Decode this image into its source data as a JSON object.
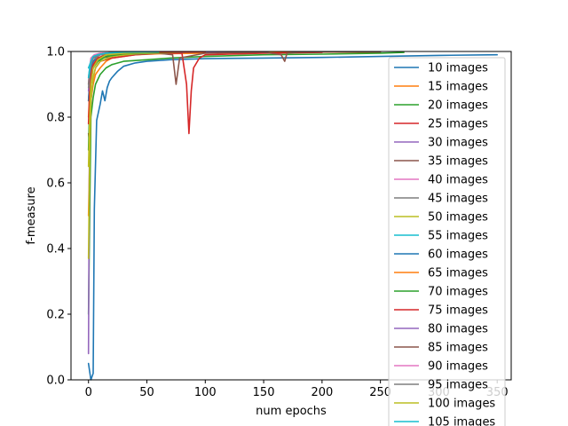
{
  "chart_data": {
    "type": "line",
    "title": "",
    "xlabel": "num epochs",
    "ylabel": "f-measure",
    "xlim": [
      -15,
      362
    ],
    "ylim": [
      0.0,
      1.0
    ],
    "xticks": [
      0,
      50,
      100,
      150,
      200,
      250,
      300,
      350
    ],
    "yticks": [
      0.0,
      0.2,
      0.4,
      0.6,
      0.8,
      1.0
    ],
    "ytick_labels": [
      "0.0",
      "0.2",
      "0.4",
      "0.6",
      "0.8",
      "1.0"
    ],
    "grid": false,
    "legend": "upper-right",
    "series": [
      {
        "name": "10 images",
        "color": "#1f77b4",
        "x": [
          0,
          2,
          4,
          5,
          7,
          10,
          12,
          14,
          16,
          18,
          20,
          25,
          30,
          40,
          50,
          70,
          100,
          150,
          200,
          250,
          300,
          350
        ],
        "y": [
          0.05,
          0.0,
          0.02,
          0.52,
          0.79,
          0.84,
          0.88,
          0.85,
          0.89,
          0.91,
          0.92,
          0.94,
          0.955,
          0.965,
          0.97,
          0.975,
          0.978,
          0.98,
          0.982,
          0.985,
          0.988,
          0.99
        ]
      },
      {
        "name": "15 images",
        "color": "#ff7f0e",
        "x": [
          0,
          2,
          4,
          6,
          10,
          15,
          20,
          30,
          40,
          60,
          100,
          150,
          200,
          250
        ],
        "y": [
          0.5,
          0.85,
          0.9,
          0.93,
          0.95,
          0.97,
          0.98,
          0.985,
          0.99,
          0.993,
          0.995,
          0.997,
          0.998,
          0.998
        ]
      },
      {
        "name": "20 images",
        "color": "#2ca02c",
        "x": [
          0,
          2,
          4,
          6,
          10,
          15,
          20,
          30,
          50,
          70,
          100,
          150,
          200,
          250,
          270
        ],
        "y": [
          0.2,
          0.8,
          0.86,
          0.9,
          0.93,
          0.95,
          0.96,
          0.97,
          0.975,
          0.98,
          0.985,
          0.99,
          0.992,
          0.995,
          0.997
        ]
      },
      {
        "name": "25 images",
        "color": "#d62728",
        "x": [
          0,
          1,
          2,
          4,
          6,
          10,
          20,
          40,
          60,
          80,
          84,
          86,
          88,
          90,
          95,
          100,
          150,
          200
        ],
        "y": [
          0.75,
          0.72,
          0.85,
          0.92,
          0.95,
          0.97,
          0.98,
          0.99,
          0.995,
          0.995,
          0.9,
          0.75,
          0.88,
          0.95,
          0.98,
          0.99,
          0.995,
          0.997
        ]
      },
      {
        "name": "30 images",
        "color": "#9467bd",
        "x": [
          0,
          1,
          2,
          4,
          6,
          10,
          20,
          50,
          100,
          150
        ],
        "y": [
          0.08,
          0.9,
          0.95,
          0.97,
          0.98,
          0.99,
          0.993,
          0.996,
          0.998,
          0.999
        ]
      },
      {
        "name": "35 images",
        "color": "#8c564b",
        "x": [
          0,
          2,
          5,
          10,
          30,
          60,
          72,
          75,
          78,
          100,
          150,
          165,
          168,
          170,
          180,
          200,
          250
        ],
        "y": [
          0.85,
          0.93,
          0.96,
          0.98,
          0.99,
          0.995,
          0.99,
          0.9,
          0.98,
          0.995,
          0.998,
          0.99,
          0.97,
          0.995,
          0.998,
          0.999,
          0.999
        ]
      },
      {
        "name": "40 images",
        "color": "#e377c2",
        "x": [
          0,
          1,
          2,
          5,
          10,
          30,
          60,
          100
        ],
        "y": [
          0.9,
          0.95,
          0.98,
          0.99,
          0.995,
          0.998,
          0.999,
          0.999
        ]
      },
      {
        "name": "45 images",
        "color": "#7f7f7f",
        "x": [
          0,
          1,
          3,
          6,
          10,
          30,
          60,
          100
        ],
        "y": [
          0.85,
          0.92,
          0.96,
          0.98,
          0.99,
          0.995,
          0.998,
          0.999
        ]
      },
      {
        "name": "50 images",
        "color": "#bcbd22",
        "x": [
          0,
          1,
          2,
          4,
          6,
          10,
          20,
          40,
          80
        ],
        "y": [
          0.37,
          0.7,
          0.85,
          0.92,
          0.95,
          0.97,
          0.985,
          0.993,
          0.998
        ]
      },
      {
        "name": "55 images",
        "color": "#17becf",
        "x": [
          0,
          1,
          2,
          4,
          8,
          15,
          30,
          60,
          100
        ],
        "y": [
          0.95,
          0.96,
          0.97,
          0.98,
          0.99,
          0.995,
          0.998,
          0.999,
          0.999
        ]
      },
      {
        "name": "60 images",
        "color": "#1f77b4",
        "x": [
          0,
          1,
          2,
          4,
          8,
          15,
          30,
          60,
          100
        ],
        "y": [
          0.85,
          0.9,
          0.94,
          0.97,
          0.98,
          0.99,
          0.995,
          0.998,
          0.999
        ]
      },
      {
        "name": "65 images",
        "color": "#ff7f0e",
        "x": [
          0,
          1,
          2,
          4,
          8,
          15,
          30,
          60,
          100
        ],
        "y": [
          0.8,
          0.88,
          0.93,
          0.96,
          0.98,
          0.99,
          0.995,
          0.998,
          0.999
        ]
      },
      {
        "name": "70 images",
        "color": "#2ca02c",
        "x": [
          0,
          1,
          2,
          4,
          8,
          15,
          30,
          60,
          100
        ],
        "y": [
          0.7,
          0.85,
          0.91,
          0.95,
          0.97,
          0.985,
          0.993,
          0.997,
          0.999
        ]
      },
      {
        "name": "75 images",
        "color": "#d62728",
        "x": [
          0,
          1,
          2,
          4,
          8,
          15,
          30,
          60,
          100
        ],
        "y": [
          0.78,
          0.88,
          0.93,
          0.96,
          0.98,
          0.99,
          0.995,
          0.998,
          0.999
        ]
      },
      {
        "name": "80 images",
        "color": "#9467bd",
        "x": [
          0,
          1,
          2,
          4,
          8,
          15,
          30,
          60
        ],
        "y": [
          0.88,
          0.93,
          0.96,
          0.98,
          0.99,
          0.995,
          0.998,
          0.999
        ]
      },
      {
        "name": "85 images",
        "color": "#8c564b",
        "x": [
          0,
          1,
          2,
          4,
          8,
          15,
          30,
          60
        ],
        "y": [
          0.9,
          0.94,
          0.97,
          0.98,
          0.99,
          0.995,
          0.998,
          0.999
        ]
      },
      {
        "name": "90 images",
        "color": "#e377c2",
        "x": [
          0,
          1,
          2,
          4,
          8,
          15,
          30,
          60
        ],
        "y": [
          0.92,
          0.95,
          0.97,
          0.985,
          0.99,
          0.995,
          0.998,
          0.999
        ]
      },
      {
        "name": "95 images",
        "color": "#7f7f7f",
        "x": [
          0,
          1,
          2,
          4,
          8,
          15,
          30,
          60
        ],
        "y": [
          0.89,
          0.93,
          0.96,
          0.98,
          0.99,
          0.995,
          0.998,
          0.999
        ]
      },
      {
        "name": "100 images",
        "color": "#bcbd22",
        "x": [
          0,
          1,
          2,
          4,
          8,
          15,
          30,
          60
        ],
        "y": [
          0.65,
          0.8,
          0.9,
          0.95,
          0.975,
          0.99,
          0.995,
          0.998
        ]
      },
      {
        "name": "105 images",
        "color": "#17becf",
        "x": [
          0,
          1,
          2,
          4,
          8,
          15,
          30,
          60
        ],
        "y": [
          0.92,
          0.95,
          0.97,
          0.985,
          0.99,
          0.995,
          0.998,
          0.999
        ]
      }
    ]
  }
}
